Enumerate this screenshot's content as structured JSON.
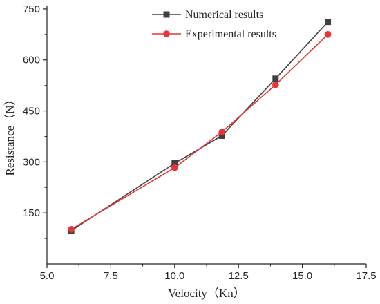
{
  "chart_data": {
    "type": "line",
    "xlabel": "Velocity（Kn）",
    "ylabel": "Resistance（N）",
    "xlim": [
      5.0,
      17.5
    ],
    "ylim": [
      0,
      760
    ],
    "xticks": [
      5.0,
      7.5,
      10.0,
      12.5,
      15.0,
      17.5
    ],
    "xtick_labels": [
      "5.0",
      "7.5",
      "10.0",
      "12.5",
      "15.0",
      "17.5"
    ],
    "yticks": [
      150,
      300,
      450,
      600,
      750
    ],
    "ytick_labels": [
      "150",
      "300",
      "450",
      "600",
      "750"
    ],
    "grid": false,
    "legend_position": "top-left",
    "series": [
      {
        "name": "Numerical results",
        "color": "#404040",
        "marker": "square",
        "x": [
          5.95,
          10.0,
          11.85,
          13.95,
          16.0
        ],
        "y": [
          98,
          296,
          377,
          545,
          712
        ]
      },
      {
        "name": "Experimental results",
        "color": "#e8333a",
        "marker": "circle",
        "x": [
          5.95,
          10.0,
          11.85,
          13.95,
          16.0
        ],
        "y": [
          102,
          283,
          388,
          527,
          675
        ]
      }
    ]
  }
}
